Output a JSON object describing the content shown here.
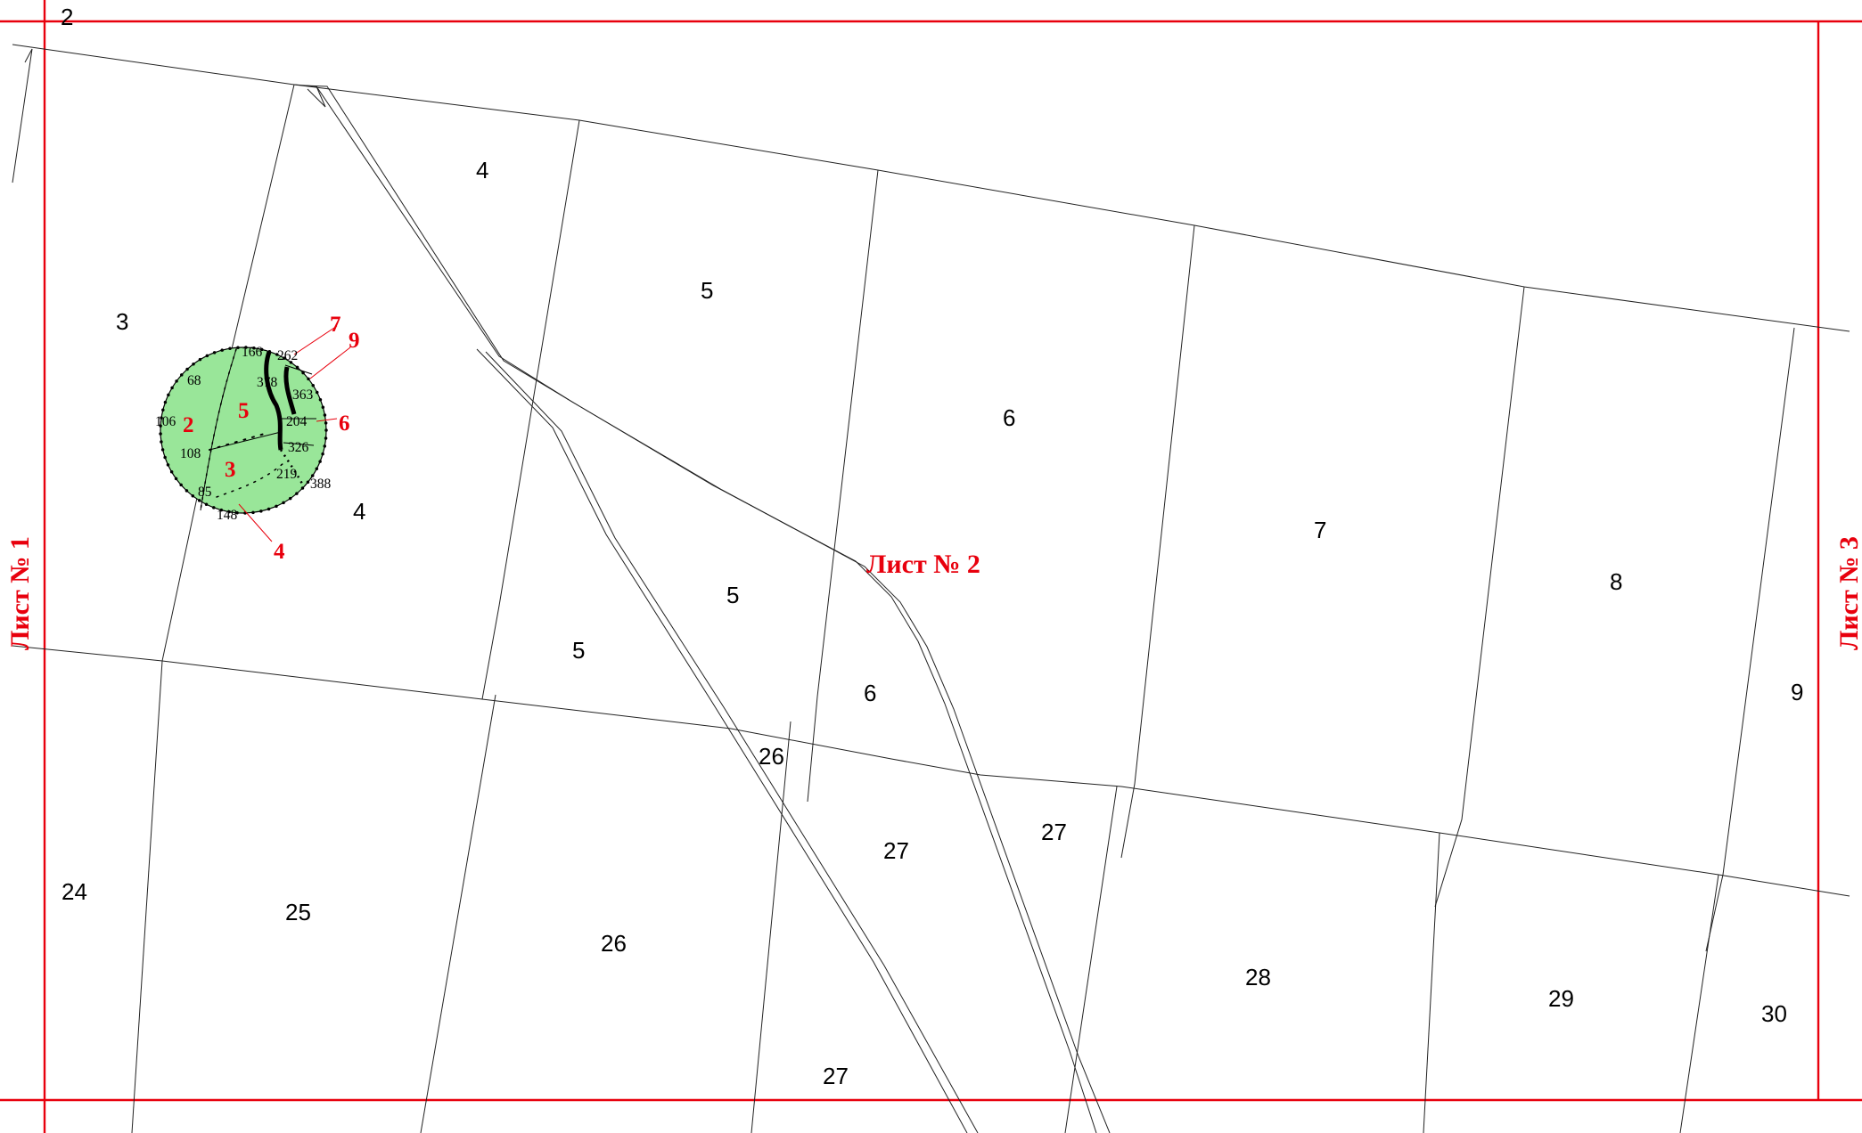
{
  "sheets": {
    "left": "Лист № 1",
    "center": "Лист № 2",
    "right": "Лист № 3"
  },
  "parcel_labels": {
    "p2": "2",
    "p3": "3",
    "p4a": "4",
    "p4b": "4",
    "p5a": "5",
    "p5b": "5",
    "p5c": "5",
    "p6a": "6",
    "p6b": "6",
    "p7": "7",
    "p8": "8",
    "p9": "9",
    "p24": "24",
    "p25": "25",
    "p26a": "26",
    "p26b": "26",
    "p27a": "27",
    "p27b": "27",
    "p27c": "27",
    "p28": "28",
    "p29": "29",
    "p30": "30"
  },
  "point_labels": {
    "pt166": "166",
    "pt262": "262",
    "pt68": "68",
    "pt378": "378",
    "pt363": "363",
    "pt106": "106",
    "pt204": "204",
    "pt108": "108",
    "pt326": "326",
    "pt219": "219",
    "pt388": "388",
    "pt85": "85",
    "pt148": "148"
  },
  "zone_labels": {
    "z2": "2",
    "z3": "3",
    "z4": "4",
    "z5": "5",
    "z6": "6",
    "z7": "7",
    "z9": "9"
  },
  "colors": {
    "frame": "#e8000d",
    "zone_fill": "#99e699",
    "lines": "#222222"
  }
}
